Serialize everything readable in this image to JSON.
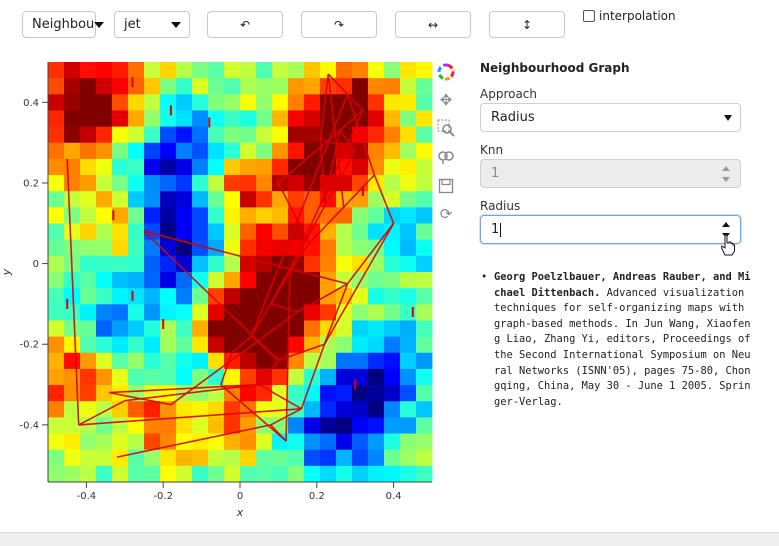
{
  "toolbar": {
    "method_select": "Neighbou",
    "colormap_select": "jet",
    "rotate_ccw_glyph": "↶",
    "rotate_cw_glyph": "↷",
    "flip_h_glyph": "↔",
    "flip_v_glyph": "↕",
    "interpolation_label": "interpolation",
    "interpolation_checked": false
  },
  "plot": {
    "x_label": "x",
    "y_label": "y",
    "x_ticks": [
      "-0.4",
      "-0.2",
      "0",
      "0.2",
      "0.4"
    ],
    "y_ticks": [
      "0.4",
      "0.2",
      "0",
      "-0.2",
      "-0.4"
    ],
    "colormap": "jet",
    "edge_color": "#dd0000",
    "tools": [
      "color-wheel-icon",
      "pan-icon",
      "box-zoom-icon",
      "wheel-zoom-icon",
      "save-icon",
      "reset-icon"
    ]
  },
  "panel": {
    "title": "Neighbourhood Graph",
    "approach_label": "Approach",
    "approach_value": "Radius",
    "knn_label": "Knn",
    "knn_value": "1",
    "radius_label": "Radius",
    "radius_value": "1"
  },
  "reference": {
    "authors": "Georg Poelzlbauer, Andreas Rauber, and Michael Dittenbach.",
    "text": "Advanced visualization techniques for self-organizing maps with graph-based methods. In Jun Wang, Xiaofeng Liao, Zhang Yi, editors, Proceedings of the Second International Symposium on Neural Networks (ISNN'05), pages 75-80, Chongqing, China, May 30 - June 1 2005. Springer-Verlag."
  }
}
